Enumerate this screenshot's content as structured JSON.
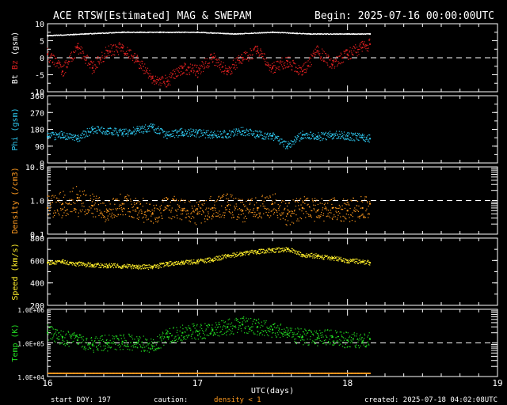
{
  "header": {
    "title": "ACE RTSW[Estimated] MAG & SWEPAM",
    "begin": "Begin: 2025-07-16 00:00:00UTC"
  },
  "footer": {
    "xlabel": "UTC(days)",
    "start_doy": "start DOY: 197",
    "caution": "caution:",
    "density_note": "density < 1",
    "created": "created: 2025-07-18 04:02:08UTC"
  },
  "x_ticks": [
    "16",
    "17",
    "18",
    "19"
  ],
  "colors": {
    "bt": "#ffffff",
    "bz": "#e02020",
    "phi": "#2ec8f0",
    "density": "#ff9a1f",
    "speed": "#ffee2a",
    "temp": "#22dd22",
    "axis": "#ffffff"
  },
  "chart_data": [
    {
      "type": "scatter",
      "panel": "mag",
      "ylabel_parts": [
        "Bt",
        "Bz",
        "(gsm)"
      ],
      "ylim": [
        -10,
        10
      ],
      "yticks": [
        "10",
        "5",
        "0",
        "-5",
        "-10"
      ],
      "dashed_ref": 0,
      "x_range_days": [
        16,
        19
      ],
      "series": [
        {
          "name": "Bt",
          "x": [
            16.0,
            16.25,
            16.5,
            16.75,
            17.0,
            17.25,
            17.5,
            17.75,
            18.0,
            18.15
          ],
          "y": [
            6.5,
            7.0,
            7.5,
            7.5,
            7.5,
            7.0,
            7.5,
            7.0,
            7.0,
            7.0
          ]
        },
        {
          "name": "Bz",
          "x": [
            16.0,
            16.1,
            16.2,
            16.3,
            16.4,
            16.5,
            16.6,
            16.7,
            16.8,
            16.9,
            17.0,
            17.1,
            17.2,
            17.3,
            17.4,
            17.5,
            17.6,
            17.7,
            17.8,
            17.9,
            18.0,
            18.1,
            18.15
          ],
          "y": [
            1,
            -4,
            3,
            -3,
            2,
            3,
            -1,
            -6,
            -7,
            -3,
            -4,
            0,
            -4,
            0,
            2,
            -3,
            -1,
            -4,
            2,
            -2,
            1,
            3,
            4
          ]
        }
      ]
    },
    {
      "type": "scatter",
      "panel": "phi",
      "ylabel": "Phi (gsm)",
      "ylim": [
        0,
        360
      ],
      "yticks": [
        "360",
        "270",
        "180",
        "90",
        "0"
      ],
      "series": [
        {
          "name": "Phi",
          "x": [
            16.0,
            16.1,
            16.2,
            16.3,
            16.4,
            16.5,
            16.6,
            16.7,
            16.8,
            16.9,
            17.0,
            17.1,
            17.2,
            17.3,
            17.4,
            17.5,
            17.6,
            17.7,
            17.8,
            17.9,
            18.0,
            18.1,
            18.15
          ],
          "y": [
            140,
            150,
            130,
            180,
            170,
            160,
            175,
            190,
            150,
            165,
            160,
            150,
            155,
            170,
            150,
            145,
            90,
            150,
            140,
            150,
            145,
            135,
            130
          ]
        }
      ]
    },
    {
      "type": "scatter",
      "panel": "density",
      "ylabel": "Density (/cm3)",
      "ylim": [
        0.1,
        10
      ],
      "log": true,
      "yticks": [
        "10.0",
        "1.0",
        "0.1"
      ],
      "dashed_ref": 1.0,
      "series": [
        {
          "name": "Density",
          "x": [
            16.0,
            16.1,
            16.2,
            16.3,
            16.4,
            16.5,
            16.6,
            16.7,
            16.8,
            16.9,
            17.0,
            17.1,
            17.2,
            17.3,
            17.4,
            17.5,
            17.6,
            17.7,
            17.8,
            17.9,
            18.0,
            18.1,
            18.15
          ],
          "y": [
            0.6,
            0.8,
            1.2,
            0.7,
            0.5,
            0.8,
            0.6,
            0.4,
            0.7,
            0.5,
            0.4,
            0.6,
            0.7,
            0.5,
            0.6,
            0.8,
            0.4,
            0.6,
            0.5,
            0.6,
            0.5,
            0.6,
            0.8
          ]
        }
      ]
    },
    {
      "type": "scatter",
      "panel": "speed",
      "ylabel": "Speed (km/s)",
      "ylim": [
        200,
        800
      ],
      "yticks": [
        "800",
        "600",
        "400",
        "200"
      ],
      "series": [
        {
          "name": "Speed",
          "x": [
            16.0,
            16.1,
            16.2,
            16.3,
            16.4,
            16.5,
            16.6,
            16.7,
            16.8,
            16.9,
            17.0,
            17.1,
            17.2,
            17.3,
            17.4,
            17.5,
            17.6,
            17.7,
            17.8,
            17.9,
            18.0,
            18.1,
            18.15
          ],
          "y": [
            580,
            590,
            570,
            560,
            555,
            550,
            545,
            540,
            570,
            580,
            590,
            610,
            640,
            660,
            680,
            690,
            700,
            650,
            640,
            620,
            600,
            590,
            580
          ]
        }
      ]
    },
    {
      "type": "scatter",
      "panel": "temp",
      "ylabel": "Temp (K)",
      "ylim": [
        10000,
        1000000
      ],
      "log": true,
      "yticks": [
        "1.0E+06",
        "1.0E+05",
        "1.0E+04"
      ],
      "dashed_ref": 100000,
      "series": [
        {
          "name": "Temp",
          "x": [
            16.0,
            16.1,
            16.2,
            16.3,
            16.4,
            16.5,
            16.6,
            16.7,
            16.8,
            16.9,
            17.0,
            17.1,
            17.2,
            17.3,
            17.4,
            17.5,
            17.6,
            17.7,
            17.8,
            17.9,
            18.0,
            18.1,
            18.15
          ],
          "y": [
            200000,
            150000,
            120000,
            90000,
            100000,
            110000,
            100000,
            80000,
            150000,
            200000,
            220000,
            250000,
            300000,
            350000,
            300000,
            250000,
            180000,
            150000,
            140000,
            150000,
            120000,
            110000,
            130000
          ]
        }
      ]
    }
  ]
}
